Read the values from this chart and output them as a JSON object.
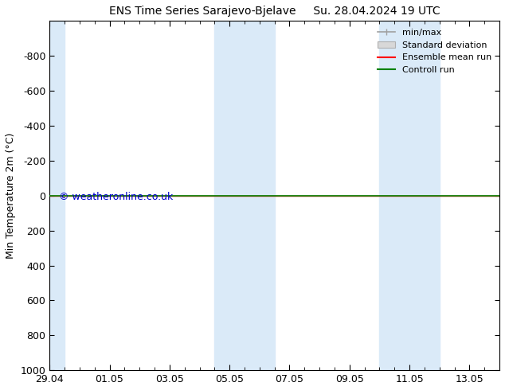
{
  "title": "ENS Time Series Sarajevo-Bjelave     Su. 28.04.2024 19 UTC",
  "ylabel": "Min Temperature 2m (°C)",
  "ylim_bottom": -1000,
  "ylim_top": 1000,
  "yticks": [
    -800,
    -600,
    -400,
    -200,
    0,
    200,
    400,
    600,
    800,
    1000
  ],
  "xlim": [
    0,
    15
  ],
  "xtick_labels": [
    "29.04",
    "01.05",
    "03.05",
    "05.05",
    "07.05",
    "09.05",
    "11.05",
    "13.05"
  ],
  "xtick_positions": [
    0,
    2,
    4,
    6,
    8,
    10,
    12,
    14
  ],
  "shaded_bands": [
    [
      0,
      0.5
    ],
    [
      5.5,
      6.5
    ],
    [
      6.5,
      7.5
    ],
    [
      11.0,
      12.0
    ],
    [
      12.0,
      13.0
    ]
  ],
  "shade_color": "#daeaf8",
  "green_line_y": 0,
  "green_line_color": "#008000",
  "red_line_color": "#ff0000",
  "watermark": "© weatheronline.co.uk",
  "watermark_color": "#0000cc",
  "background_color": "#ffffff"
}
